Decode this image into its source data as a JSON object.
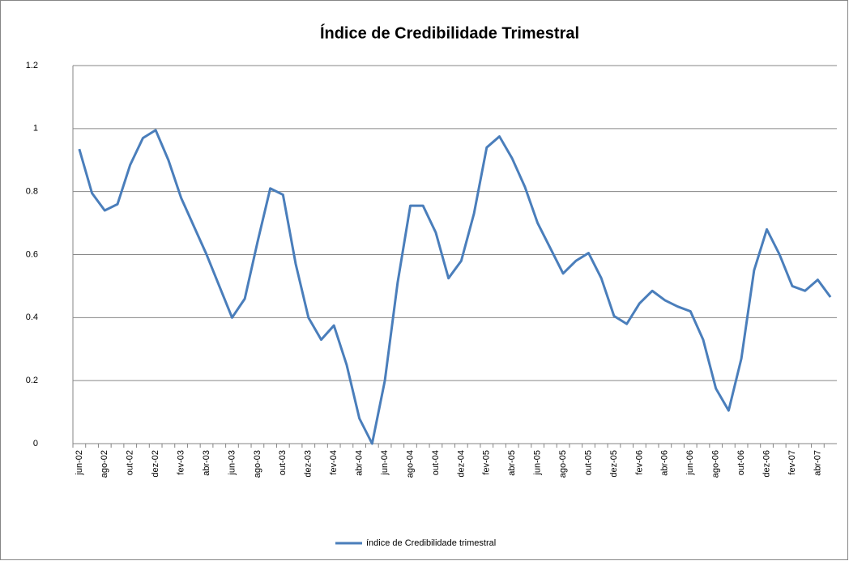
{
  "chart_data": {
    "type": "line",
    "title": "Índice de Credibilidade Trimestral",
    "categories": [
      "jun-02",
      null,
      "ago-02",
      null,
      "out-02",
      null,
      "dez-02",
      null,
      "fev-03",
      null,
      "abr-03",
      null,
      "jun-03",
      null,
      "ago-03",
      null,
      "out-03",
      null,
      "dez-03",
      null,
      "fev-04",
      null,
      "abr-04",
      null,
      "jun-04",
      null,
      "ago-04",
      null,
      "out-04",
      null,
      "dez-04",
      null,
      "fev-05",
      null,
      "abr-05",
      null,
      "jun-05",
      null,
      "ago-05",
      null,
      "out-05",
      null,
      "dez-05",
      null,
      "fev-06",
      null,
      "abr-06",
      null,
      "jun-06",
      null,
      "ago-06",
      null,
      "out-06",
      null,
      "dez-06",
      null,
      "fev-07",
      null,
      "abr-07",
      null
    ],
    "series": [
      {
        "name": "índice de Credibilidade trimestral",
        "color": "#4a7ebb",
        "values": [
          0.935,
          0.795,
          0.74,
          0.76,
          0.885,
          0.97,
          0.995,
          0.9,
          0.78,
          0.69,
          0.6,
          0.5,
          0.4,
          0.46,
          0.64,
          0.81,
          0.79,
          0.57,
          0.4,
          0.33,
          0.375,
          0.25,
          0.08,
          0,
          0.2,
          0.51,
          0.755,
          0.755,
          0.67,
          0.525,
          0.58,
          0.73,
          0.94,
          0.975,
          0.905,
          0.815,
          0.7,
          0.62,
          0.54,
          0.58,
          0.605,
          0.525,
          0.405,
          0.38,
          0.445,
          0.485,
          0.455,
          0.435,
          0.42,
          0.33,
          0.175,
          0.105,
          0.27,
          0.55,
          0.68,
          0.6,
          0.5,
          0.485,
          0.52,
          0.465
        ]
      }
    ],
    "ylim": [
      0,
      1.2
    ],
    "yticks": [
      0,
      0.2,
      0.4,
      0.6,
      0.8,
      1,
      1.2
    ],
    "grid": true,
    "legend": "bottom"
  }
}
